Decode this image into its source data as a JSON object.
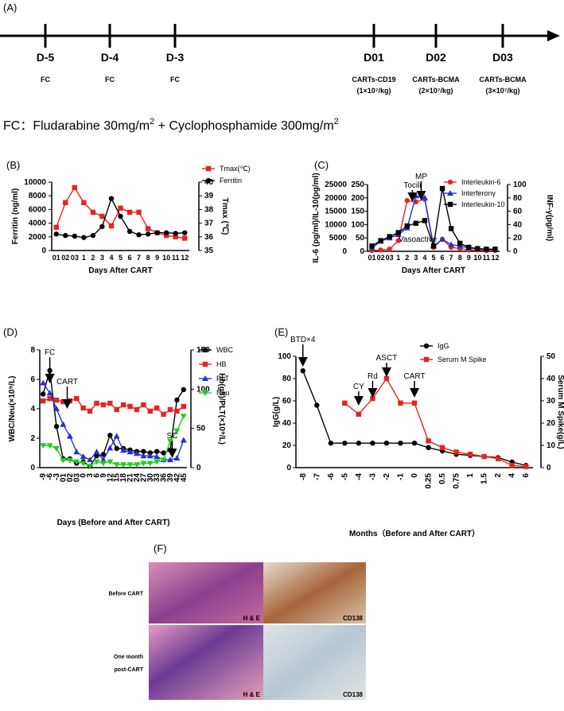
{
  "panel_a": {
    "label": "(A)",
    "days": [
      {
        "day": "D-5",
        "lines": [
          "FC"
        ]
      },
      {
        "day": "D-4",
        "lines": [
          "FC"
        ]
      },
      {
        "day": "D-3",
        "lines": [
          "FC"
        ]
      },
      {
        "day": "D01",
        "lines": [
          "CARTs-CD19",
          "(1×10⁷/kg)"
        ]
      },
      {
        "day": "D02",
        "lines": [
          "CARTs-BCMA",
          "(2×10⁷/kg)"
        ]
      },
      {
        "day": "D03",
        "lines": [
          "CARTs-BCMA",
          "(3×10⁷/kg)"
        ]
      }
    ],
    "formula": [
      "FC：Fludarabine   30mg/m",
      "2",
      " + Cyclophosphamide   300mg/m",
      "2"
    ]
  },
  "chart_data": [
    {
      "type": "line",
      "panel": "(B)",
      "xlabel": "Days After CART",
      "ylabel": "Ferritin (ng/ml)",
      "y2label": "Tmax (℃)",
      "categories": [
        "01",
        "02",
        "03",
        "1",
        "2",
        "3",
        "4",
        "5",
        "6",
        "7",
        "8",
        "9",
        "10",
        "11",
        "12"
      ],
      "ylim": [
        0,
        10000
      ],
      "yticks": [
        0,
        2000,
        4000,
        6000,
        8000,
        10000
      ],
      "y2lim": [
        35,
        40
      ],
      "y2ticks": [
        35,
        36,
        37,
        38,
        39,
        40
      ],
      "series": [
        {
          "name": "Tmax(℃)",
          "color": "#e8231f",
          "marker": "square",
          "axis": "y2",
          "values": [
            36.7,
            38.5,
            39.6,
            38.5,
            37.8,
            37.5,
            36.8,
            38.1,
            37.8,
            37.8,
            36.6,
            36.3,
            36.1,
            36.0,
            35.9
          ]
        },
        {
          "name": "Ferritin",
          "color": "#000000",
          "marker": "circle",
          "axis": "y",
          "values": [
            2400,
            2200,
            2100,
            1900,
            2200,
            3500,
            7600,
            5000,
            2800,
            2300,
            2400,
            2600,
            2600,
            2500,
            2600
          ]
        }
      ],
      "annotations": []
    },
    {
      "type": "line",
      "panel": "(C)",
      "xlabel": "Days After CART",
      "ylabel": "IL-6 (pg/ml)/IL-10(pg/ml)",
      "y2label": "INF-γ(pg/ml)",
      "categories": [
        "01",
        "02",
        "03",
        "1",
        "2",
        "3",
        "4",
        "5",
        "6",
        "7",
        "8",
        "9",
        "10",
        "11",
        "12"
      ],
      "ylim": [
        0,
        25000
      ],
      "yticks": [
        0,
        5000,
        10000,
        15000,
        20000,
        25000
      ],
      "y3lim": [
        0,
        250
      ],
      "y3ticks": [
        0,
        50,
        100,
        150,
        200,
        250
      ],
      "y2lim": [
        0,
        100
      ],
      "y2ticks": [
        0,
        20,
        40,
        60,
        80,
        100
      ],
      "series": [
        {
          "name": "Interleukin-6",
          "color": "#e8231f",
          "marker": "circle",
          "axis": "y",
          "values": [
            300,
            500,
            800,
            4000,
            19000,
            18500,
            19500,
            1500,
            4500,
            1500,
            1000,
            500,
            500,
            300,
            300
          ]
        },
        {
          "name": "Interferonγ",
          "color": "#2233cc",
          "marker": "triangle",
          "axis": "y2",
          "values": [
            5,
            15,
            20,
            25,
            35,
            83,
            80,
            8,
            18,
            10,
            8,
            5,
            4,
            3,
            3
          ]
        },
        {
          "name": "Interleukin-10",
          "color": "#000000",
          "marker": "square",
          "axis": "y3",
          "values": [
            20,
            40,
            55,
            70,
            95,
            105,
            115,
            20,
            235,
            85,
            30,
            15,
            10,
            8,
            8
          ]
        }
      ],
      "annotations": [
        "Tocili",
        "MP",
        "Vasoactive"
      ]
    },
    {
      "type": "line",
      "panel": "(D)",
      "xlabel": "Days (Before and After CART)",
      "ylabel": "WBC/Neu(×10⁹/L)",
      "y2label": "Hb(g/l)/PLT(×10⁹/L)",
      "categories": [
        "-9",
        "-6",
        "-3",
        "01",
        "02",
        "03",
        "0",
        "3",
        "6",
        "9",
        "12",
        "15",
        "18",
        "21",
        "24",
        "27",
        "30",
        "33",
        "36",
        "39",
        "42",
        "45"
      ],
      "ylim": [
        0,
        8
      ],
      "yticks": [
        0,
        2,
        4,
        6,
        8
      ],
      "y2lim": [
        0,
        150
      ],
      "y2ticks": [
        0,
        50,
        100,
        150
      ],
      "series": [
        {
          "name": "WBC",
          "color": "#000000",
          "marker": "circle",
          "axis": "y",
          "values": [
            5,
            6.6,
            2.8,
            0.6,
            0.6,
            0.3,
            0.4,
            0.1,
            0.8,
            0.9,
            2.2,
            1.3,
            1.3,
            1.2,
            1.1,
            1.1,
            1.0,
            1.1,
            1.0,
            1.2,
            4.6,
            5.3
          ]
        },
        {
          "name": "HB",
          "color": "#e8231f",
          "marker": "square",
          "axis": "y2",
          "values": [
            85,
            88,
            86,
            84,
            85,
            88,
            76,
            72,
            82,
            80,
            82,
            74,
            80,
            78,
            74,
            80,
            72,
            76,
            68,
            74,
            72,
            78
          ]
        },
        {
          "name": "PLT",
          "color": "#2233cc",
          "marker": "triangle",
          "axis": "y2",
          "values": [
            108,
            95,
            75,
            55,
            40,
            20,
            14,
            10,
            20,
            10,
            25,
            40,
            22,
            20,
            18,
            15,
            15,
            14,
            10,
            10,
            12,
            35
          ]
        },
        {
          "name": "Neu",
          "color": "#22cc22",
          "marker": "triangle-down",
          "axis": "y",
          "values": [
            1.5,
            1.5,
            1.3,
            0.5,
            0.5,
            0.4,
            0.3,
            0.1,
            0.4,
            0.3,
            0.4,
            0.2,
            0.2,
            0.2,
            0.2,
            0.3,
            0.3,
            0.4,
            0.5,
            1.8,
            2.5,
            3.5
          ]
        }
      ],
      "annotations": [
        "FC",
        "CART",
        "SC"
      ]
    },
    {
      "type": "line",
      "panel": "(E)",
      "xlabel": "Months（Before and After CART）",
      "ylabel": "IgG(g/L)",
      "y2label": "Serum M Spike(g/L)",
      "categories": [
        "-8",
        "-7",
        "-6",
        "-5",
        "-4",
        "-3",
        "-2",
        "-1",
        "0",
        "0.25",
        "0.5",
        "0.75",
        "1",
        "1.5",
        "2",
        "4",
        "6"
      ],
      "ylim": [
        0,
        100
      ],
      "yticks": [
        0,
        20,
        40,
        60,
        80,
        100
      ],
      "y2lim": [
        0,
        50
      ],
      "y2ticks": [
        0,
        10,
        20,
        30,
        40,
        50
      ],
      "series": [
        {
          "name": "IgG",
          "color": "#000000",
          "marker": "circle",
          "axis": "y",
          "values": [
            87,
            56,
            22,
            22,
            22,
            22,
            22,
            22,
            22,
            18,
            15,
            12,
            11,
            10,
            9,
            5,
            2
          ]
        },
        {
          "name": "Serum M Spike",
          "color": "#e8231f",
          "marker": "square",
          "axis": "y2",
          "values": [
            null,
            null,
            null,
            29,
            24,
            31,
            40,
            29,
            29,
            12,
            9,
            7,
            6,
            5,
            4,
            1,
            0.5
          ]
        }
      ],
      "annotations": [
        "BTD×4",
        "CY",
        "Rd",
        "ASCT",
        "CART"
      ]
    }
  ],
  "panel_f": {
    "label": "(F)",
    "rows": [
      {
        "label": [
          "Before CART"
        ],
        "images": [
          "H & E",
          "CD138"
        ]
      },
      {
        "label": [
          "One month",
          "post-CART"
        ],
        "images": [
          "H & E",
          "CD138"
        ]
      }
    ]
  }
}
